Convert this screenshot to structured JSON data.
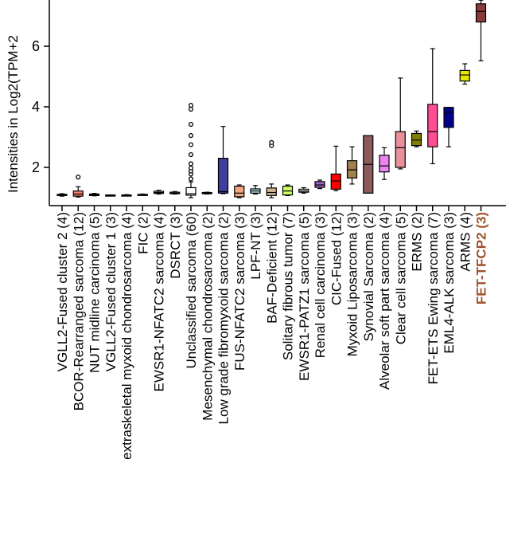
{
  "chart_data": {
    "type": "box",
    "ylabel": "Intensities in Log2(TPM+2",
    "yticks": [
      2,
      4,
      6
    ],
    "ylim": [
      0.8,
      7.6
    ],
    "categories": [
      "VGLL2-Fused cluster 2 (4)",
      "BCOR-Rearranged sarcoma (12)",
      "NUT midline carcinoma (5)",
      "VGLL2-Fused cluster 1 (3)",
      "extraskeletal myxoid chondrosarcoma (4)",
      "FIC (2)",
      "EWSR1-NFATC2 sarcoma (4)",
      "DSRCT (3)",
      "Unclassified sarcoma (60)",
      "Mesenchymal chondrosarcoma (2)",
      "Low grade fibromyxoid sarcoma (2)",
      "FUS-NFATC2 sarcoma (3)",
      "LPF-NT (3)",
      "BAF-Deficient (12)",
      "Solitary fibrous tumor (7)",
      "EWSR1-PATZ1 sarcoma (5)",
      "Renal cell carcinoma (3)",
      "CIC-Fused (12)",
      "Myxoid Liposarcoma (3)",
      "Synovial Sarcoma (2)",
      "Alveolar soft part sarcoma (4)",
      "Clear cell sarcoma (5)",
      "ERMS (2)",
      "FET-ETS Ewing sarcoma (7)",
      "EML4-ALK sarcoma (3)",
      "ARMS (4)",
      "FET-TFCP2 (3)"
    ],
    "highlight_index": 26,
    "highlight_color": "#A0522D",
    "boxes": [
      {
        "min": 1.05,
        "q1": 1.07,
        "median": 1.09,
        "q3": 1.11,
        "max": 1.13,
        "outliers": [],
        "color": "#FFFFFF"
      },
      {
        "min": 1.02,
        "q1": 1.05,
        "median": 1.12,
        "q3": 1.22,
        "max": 1.36,
        "outliers": [
          1.68
        ],
        "color": "#FA8072"
      },
      {
        "min": 1.06,
        "q1": 1.07,
        "median": 1.09,
        "q3": 1.12,
        "max": 1.14,
        "outliers": [],
        "color": "#CD5C5C"
      },
      {
        "min": 1.07,
        "q1": 1.08,
        "median": 1.08,
        "q3": 1.09,
        "max": 1.09,
        "outliers": [],
        "color": "#FFFFFF"
      },
      {
        "min": 1.06,
        "q1": 1.07,
        "median": 1.08,
        "q3": 1.09,
        "max": 1.1,
        "outliers": [],
        "color": "#FFFFFF"
      },
      {
        "min": 1.08,
        "q1": 1.09,
        "median": 1.1,
        "q3": 1.11,
        "max": 1.12,
        "outliers": [],
        "color": "#FFFFFF"
      },
      {
        "min": 1.12,
        "q1": 1.14,
        "median": 1.17,
        "q3": 1.21,
        "max": 1.24,
        "outliers": [],
        "color": "#FFFFFF"
      },
      {
        "min": 1.12,
        "q1": 1.13,
        "median": 1.15,
        "q3": 1.18,
        "max": 1.2,
        "outliers": [],
        "color": "#FFFFFF"
      },
      {
        "min": 1.0,
        "q1": 1.08,
        "median": 1.13,
        "q3": 1.33,
        "max": 1.52,
        "outliers": [
          1.62,
          1.78,
          1.88,
          1.98,
          2.12,
          2.42,
          2.75,
          3.05,
          3.42,
          3.92,
          4.05
        ],
        "color": "#FFFFFF"
      },
      {
        "min": 1.12,
        "q1": 1.13,
        "median": 1.15,
        "q3": 1.17,
        "max": 1.18,
        "outliers": [],
        "color": "#FFFFFF"
      },
      {
        "min": 1.13,
        "q1": 1.15,
        "median": 1.2,
        "q3": 2.3,
        "max": 3.35,
        "outliers": [],
        "color": "#3F3F9F"
      },
      {
        "min": 1.0,
        "q1": 1.03,
        "median": 1.15,
        "q3": 1.38,
        "max": 1.42,
        "outliers": [],
        "color": "#F4A582"
      },
      {
        "min": 1.12,
        "q1": 1.15,
        "median": 1.22,
        "q3": 1.29,
        "max": 1.4,
        "outliers": [],
        "color": "#B2EBF2"
      },
      {
        "min": 1.0,
        "q1": 1.07,
        "median": 1.17,
        "q3": 1.32,
        "max": 1.45,
        "outliers": [
          2.72,
          2.82
        ],
        "color": "#D2B48C"
      },
      {
        "min": 1.07,
        "q1": 1.09,
        "median": 1.22,
        "q3": 1.38,
        "max": 1.42,
        "outliers": [],
        "color": "#CCFF66"
      },
      {
        "min": 1.15,
        "q1": 1.18,
        "median": 1.22,
        "q3": 1.28,
        "max": 1.33,
        "outliers": [],
        "color": "#FFFFFF"
      },
      {
        "min": 1.3,
        "q1": 1.34,
        "median": 1.42,
        "q3": 1.53,
        "max": 1.58,
        "outliers": [],
        "color": "#9966CC"
      },
      {
        "min": 1.23,
        "q1": 1.28,
        "median": 1.55,
        "q3": 1.78,
        "max": 2.7,
        "outliers": [],
        "color": "#FF0000"
      },
      {
        "min": 1.45,
        "q1": 1.65,
        "median": 1.92,
        "q3": 2.22,
        "max": 2.68,
        "outliers": [],
        "color": "#A08050"
      },
      {
        "min": 1.15,
        "q1": 1.15,
        "median": 2.1,
        "q3": 3.05,
        "max": 3.05,
        "outliers": [],
        "color": "#8B5A5A"
      },
      {
        "min": 1.6,
        "q1": 1.85,
        "median": 2.05,
        "q3": 2.4,
        "max": 2.65,
        "outliers": [],
        "color": "#EE82EE"
      },
      {
        "min": 1.95,
        "q1": 2.0,
        "median": 2.65,
        "q3": 3.18,
        "max": 4.95,
        "outliers": [],
        "color": "#E8909C"
      },
      {
        "min": 2.68,
        "q1": 2.72,
        "median": 2.9,
        "q3": 3.12,
        "max": 3.2,
        "outliers": [],
        "color": "#808000"
      },
      {
        "min": 2.12,
        "q1": 2.68,
        "median": 3.18,
        "q3": 4.08,
        "max": 5.92,
        "outliers": [],
        "color": "#FF4D94"
      },
      {
        "min": 2.68,
        "q1": 3.32,
        "median": 3.82,
        "q3": 3.98,
        "max": 3.98,
        "outliers": [],
        "color": "#00008B"
      },
      {
        "min": 4.75,
        "q1": 4.85,
        "median": 5.05,
        "q3": 5.2,
        "max": 5.42,
        "outliers": [],
        "color": "#E6E600"
      },
      {
        "min": 5.52,
        "q1": 6.8,
        "median": 7.15,
        "q3": 7.4,
        "max": 7.52,
        "outliers": [],
        "color": "#8B3A3A"
      }
    ]
  }
}
